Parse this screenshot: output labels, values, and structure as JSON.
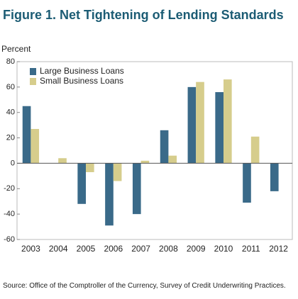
{
  "chart_data": {
    "type": "bar",
    "title": "Figure 1. Net Tightening of Lending Standards",
    "y_label": "Percent",
    "categories": [
      "2003",
      "2004",
      "2005",
      "2006",
      "2007",
      "2008",
      "2009",
      "2010",
      "2011",
      "2012"
    ],
    "series": [
      {
        "name": "Large Business Loans",
        "color": "#3a6a89",
        "values": [
          45,
          null,
          -32,
          -49,
          -40,
          26,
          60,
          56,
          -31,
          -22
        ]
      },
      {
        "name": "Small Business Loans",
        "color": "#d6cd8c",
        "values": [
          27,
          4,
          -7,
          -14,
          2,
          6,
          64,
          66,
          21,
          null
        ]
      }
    ],
    "ylim": [
      -60,
      80
    ],
    "yticks": [
      -60,
      -40,
      -20,
      0,
      20,
      40,
      60,
      80
    ],
    "legend": "top-left",
    "source": "Source: Office of the Comptroller of the Currency, Survey of Credit Underwriting Practices."
  }
}
